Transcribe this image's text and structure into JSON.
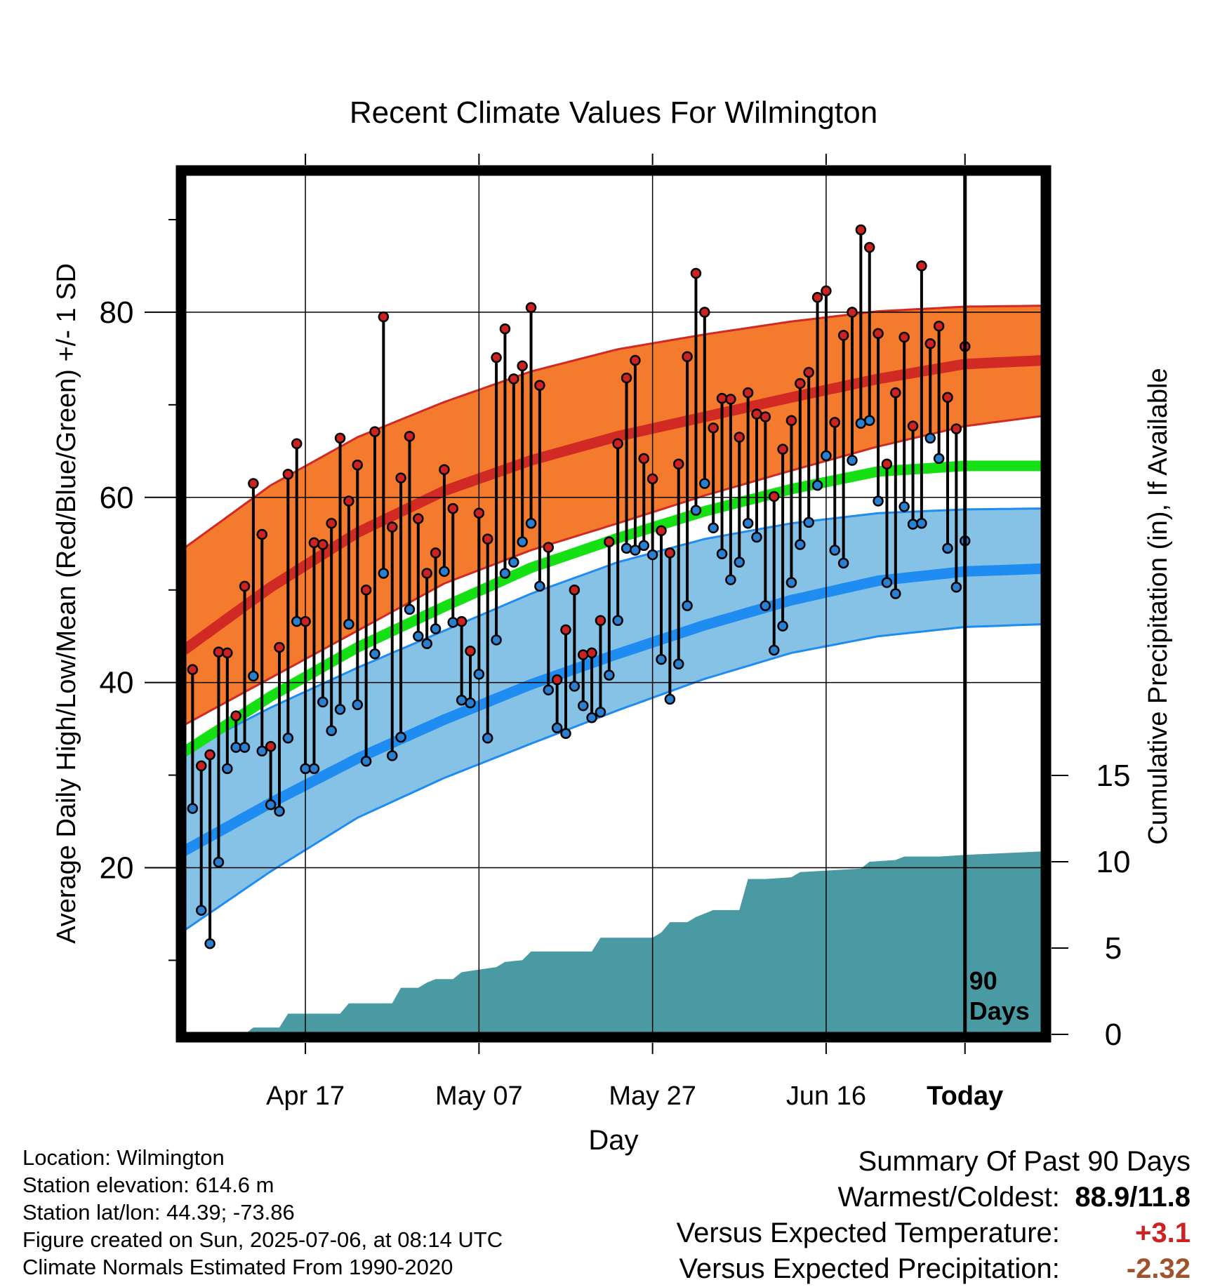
{
  "chart_data": {
    "type": "line",
    "title": "Recent Climate Values For Wilmington",
    "xlabel": "Day",
    "ylabel_left": "Average Daily High/Low/Mean (Red/Blue/Green) +/- 1 SD",
    "ylabel_right": "Cumulative Precipitation (in), If Available",
    "x_tick_labels": [
      "Apr 17",
      "May 07",
      "May 27",
      "Jun 16",
      "Today"
    ],
    "y_left_ticks": [
      "20",
      "40",
      "60",
      "80"
    ],
    "y_right_ticks": [
      "0",
      "5",
      "10",
      "15"
    ],
    "today_marker": {
      "line1": "90",
      "line2": "Days"
    },
    "ylim_left": [
      2,
      95
    ],
    "ylim_right": [
      0,
      50
    ],
    "x_range_days": [
      -90,
      9
    ],
    "grid": true,
    "colors": {
      "high_band": "#f47a2e",
      "high_mean_line": "#d12a24",
      "low_band": "#86c1e6",
      "low_mean_line": "#1e8cf0",
      "mean_line": "#14e014",
      "precip_fill": "#4a9aa3",
      "high_point": "#cc2222",
      "low_point": "#2a7fd0"
    },
    "normals": {
      "day": [
        -90,
        -80,
        -70,
        -60,
        -50,
        -40,
        -30,
        -20,
        -10,
        0,
        9
      ],
      "high_mean": [
        43.5,
        50.3,
        56.2,
        60.7,
        64.0,
        66.6,
        68.7,
        70.8,
        72.8,
        74.4,
        74.8
      ],
      "high_upper": [
        54.5,
        61.3,
        66.5,
        70.3,
        73.6,
        76.0,
        77.6,
        79.0,
        80.1,
        80.6,
        80.7
      ],
      "high_lower": [
        35.4,
        40.5,
        45.6,
        50.7,
        54.3,
        57.2,
        60.2,
        62.9,
        65.5,
        67.7,
        68.8
      ],
      "low_mean": [
        21.8,
        27.0,
        31.8,
        36.0,
        39.8,
        43.1,
        46.2,
        48.9,
        51.0,
        52.0,
        52.3
      ],
      "low_upper": [
        32.5,
        37.3,
        41.6,
        45.6,
        49.6,
        53.0,
        55.5,
        57.2,
        58.3,
        58.7,
        58.8
      ],
      "low_lower": [
        13.2,
        19.6,
        25.4,
        29.7,
        33.4,
        37.0,
        40.4,
        43.2,
        45.0,
        46.0,
        46.3
      ],
      "mean": [
        32.5,
        38.5,
        43.8,
        48.2,
        52.4,
        55.6,
        58.5,
        60.9,
        62.8,
        63.4,
        63.4
      ]
    },
    "daily": {
      "day_start": -89,
      "high": [
        41.4,
        31.0,
        32.2,
        43.3,
        43.2,
        36.4,
        50.4,
        61.5,
        56.0,
        33.1,
        43.8,
        62.5,
        65.8,
        46.6,
        55.1,
        54.9,
        57.2,
        66.4,
        59.6,
        63.5,
        50.0,
        67.1,
        79.5,
        56.8,
        62.1,
        66.6,
        57.7,
        51.8,
        54.0,
        63.0,
        58.8,
        46.6,
        43.4,
        58.3,
        55.5,
        75.1,
        78.2,
        72.8,
        74.2,
        80.5,
        72.1,
        54.6,
        40.3,
        45.7,
        50.0,
        43.0,
        43.2,
        46.7,
        55.2,
        65.8,
        72.9,
        74.8,
        64.2,
        62.0,
        56.4,
        54.0,
        63.6,
        75.2,
        84.2,
        80.0,
        67.5,
        70.7,
        70.6,
        66.5,
        71.3,
        69.0,
        68.7,
        60.1,
        65.2,
        68.3,
        72.3,
        73.5,
        81.6,
        82.3,
        68.1,
        77.5,
        80.0,
        88.9,
        87.0,
        77.7,
        63.6,
        71.3,
        77.3,
        67.7,
        85.0,
        76.6,
        78.5,
        70.8,
        67.4,
        76.3
      ],
      "low": [
        26.4,
        15.4,
        11.8,
        20.6,
        30.7,
        33.0,
        33.0,
        40.7,
        32.6,
        26.8,
        26.1,
        34.0,
        46.6,
        30.7,
        30.7,
        37.9,
        34.8,
        37.1,
        46.3,
        37.6,
        31.5,
        43.1,
        51.8,
        32.1,
        34.1,
        47.9,
        45.0,
        44.2,
        45.8,
        52.0,
        46.5,
        38.1,
        37.8,
        40.9,
        34.0,
        44.6,
        51.8,
        53.0,
        55.2,
        57.2,
        50.4,
        39.2,
        35.1,
        34.5,
        39.6,
        37.5,
        36.2,
        36.8,
        40.8,
        46.7,
        54.5,
        54.3,
        54.8,
        53.8,
        42.5,
        38.2,
        42.0,
        48.3,
        58.6,
        61.5,
        56.7,
        53.9,
        51.1,
        53.0,
        57.2,
        55.7,
        48.3,
        43.5,
        46.1,
        50.8,
        54.9,
        57.3,
        61.3,
        64.5,
        54.3,
        52.9,
        64.0,
        68.0,
        68.3,
        59.6,
        50.8,
        49.6,
        59.0,
        57.1,
        57.2,
        66.4,
        64.2,
        54.5,
        50.3,
        55.3
      ]
    },
    "cumulative_precip": {
      "day": [
        -90,
        -83,
        -82,
        -79,
        -78,
        -72,
        -71,
        -66,
        -65,
        -63,
        -62,
        -61,
        -59,
        -58,
        -54,
        -53,
        -51,
        -50,
        -43,
        -42,
        -36,
        -35,
        -34,
        -32,
        -31,
        -29,
        -26,
        -25,
        -23,
        -20,
        -19,
        -12,
        -11,
        -8,
        -7,
        -3,
        0,
        9
      ],
      "value": [
        0.0,
        0.0,
        0.4,
        0.4,
        1.2,
        1.2,
        1.8,
        1.8,
        2.7,
        2.7,
        3.0,
        3.2,
        3.2,
        3.6,
        3.9,
        4.2,
        4.3,
        4.8,
        4.8,
        5.6,
        5.6,
        5.9,
        6.5,
        6.5,
        6.8,
        7.2,
        7.2,
        9.0,
        9.0,
        9.1,
        9.4,
        9.6,
        10.0,
        10.1,
        10.3,
        10.3,
        10.4,
        10.6
      ]
    }
  },
  "footer": {
    "location": "Location: Wilmington",
    "elevation": "Station elevation: 614.6 m",
    "latlon": "Station lat/lon: 44.39; -73.86",
    "created": "Figure created on Sun, 2025-07-06, at 08:14 UTC",
    "normals": "Climate Normals Estimated From 1990-2020"
  },
  "summary": {
    "title": "Summary Of Past 90 Days",
    "warm_cold_label": "Warmest/Coldest:",
    "warm_cold_value": "88.9/11.8",
    "temp_label": "Versus Expected Temperature:",
    "temp_value": "+3.1",
    "temp_color": "#cc2222",
    "precip_label": "Versus Expected Precipitation:",
    "precip_value": "-2.32",
    "precip_color": "#a0522d"
  }
}
